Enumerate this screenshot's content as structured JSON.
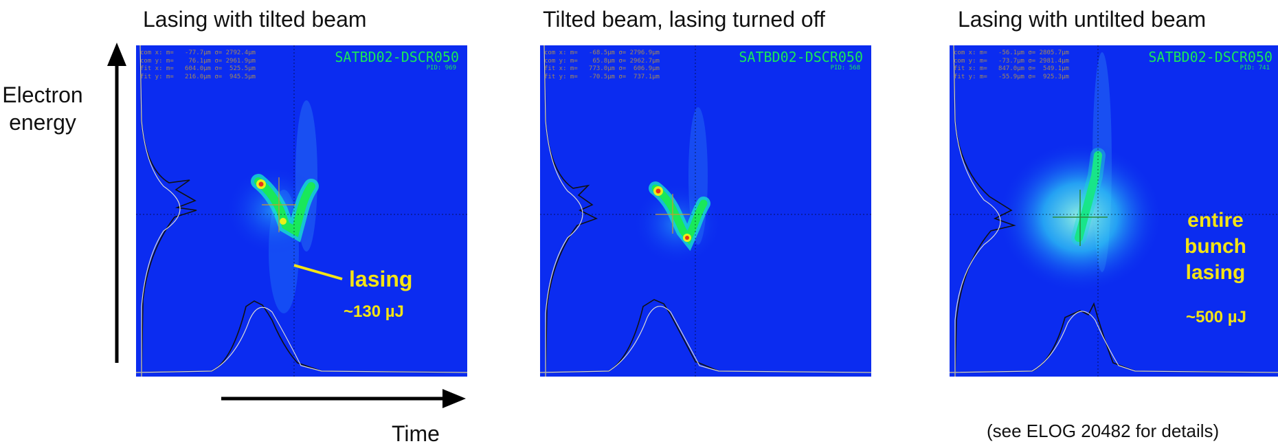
{
  "axes": {
    "y_label_line1": "Electron",
    "y_label_line2": "energy",
    "x_label": "Time"
  },
  "panels": [
    {
      "title": "Lasing with tilted beam",
      "camera": "SATBD02-DSCR050",
      "pid": "PID: 969",
      "stats": [
        "com x: m=   -77.7µm σ= 2792.4µm",
        "com y: m=    76.1µm σ= 2961.9µm",
        "fit x: m=   604.0µm σ=  525.5µm",
        "fit y: m=   216.0µm σ=  945.5µm"
      ],
      "annotation": "lasing",
      "energy": "~130 µJ"
    },
    {
      "title": "Tilted beam, lasing turned off",
      "camera": "SATBD02-DSCR050",
      "pid": "PID: 568",
      "stats": [
        "com x: m=   -68.5µm σ= 2796.9µm",
        "com y: m=    65.8µm σ= 2962.7µm",
        "fit x: m=   773.0µm σ=  606.9µm",
        "fit y: m=   -70.5µm σ=  737.1µm"
      ]
    },
    {
      "title": "Lasing with untilted beam",
      "camera": "SATBD02-DSCR050",
      "pid": "PID: 741",
      "stats": [
        "com x: m=   -56.1µm σ= 2805.7µm",
        "com y: m=   -73.7µm σ= 2981.4µm",
        "fit x: m=   847.0µm σ=  549.1µm",
        "fit y: m=   -55.9µm σ=  925.3µm"
      ],
      "annotation_line1": "entire",
      "annotation_line2": "bunch",
      "annotation_line3": "lasing",
      "energy": "~500 µJ"
    }
  ],
  "footnote": "(see ELOG 20482 for details)",
  "colors": {
    "background": "#0b2cf0",
    "camera_label": "#19e85a",
    "stats_text": "#a88a55",
    "annotation": "#f4e414"
  }
}
